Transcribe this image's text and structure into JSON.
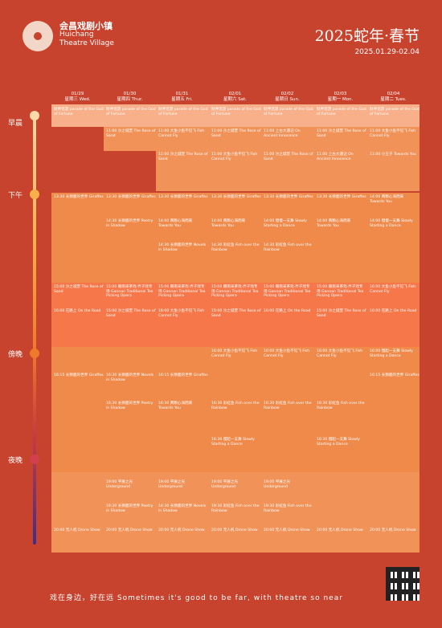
{
  "brand": {
    "cn": "会昌戏剧小镇",
    "en1": "Huichang",
    "en2": "Theatre Village"
  },
  "title": "2025蛇年·春节",
  "dates": "2025.01.29-02.04",
  "days": [
    {
      "date": "01/29",
      "label": "星期三 Wed."
    },
    {
      "date": "01/30",
      "label": "星期四 Thur."
    },
    {
      "date": "01/31",
      "label": "星期五 Fri."
    },
    {
      "date": "02/01",
      "label": "星期六 Sat."
    },
    {
      "date": "02/02",
      "label": "星期日 Sun."
    },
    {
      "date": "02/03",
      "label": "星期一 Mon."
    },
    {
      "date": "02/04",
      "label": "星期二 Tues."
    }
  ],
  "periods": [
    "早晨",
    "下午",
    "傍晚",
    "夜晚"
  ],
  "events": {
    "e1": "财神巡游 parade of the God of Fortune",
    "e2": "11:00 沙之城堡 The Rose of Sand",
    "e3": "11:00 大鱼小鱼不见飞 Fish Cannot Fly",
    "e4": "11:00 上古大遇记 On Ancient Innocence",
    "e5": "11:00 小王子 Towards You",
    "e6": "13:30 长颈鹿的世界 Giraffes",
    "e7": "14:30 长颈鹿的世界 Poetry in Shadow",
    "e8": "14:30 长颈鹿的世界 Novels in Shadow",
    "e9": "14:00 两颗心海而来 Towards You",
    "e10": "14:00 慢慢一支舞 Slowly Starting a Dance",
    "e11": "14:30 彩虹鱼 Fish over the Rainbow",
    "e12": "15:00 赣南采茶戏·弄子戏专场 Gannan Traditional Tea Picking Opera",
    "e13": "15:00 沙之城堡 The Rose of Sand",
    "e14": "16:00 在路上 On the Road",
    "e15": "16:00 大鱼小鱼不见飞 Fish Cannot Fly",
    "e16": "16:00 慢起一支舞 Slowly Starting a Dance",
    "e17": "16:15 长颈鹿的世界 Giraffes",
    "e18": "16:30 长颈鹿的世界 Novels in Shadow",
    "e19": "16:30 长颈鹿的世界 Poetry in Shadow",
    "e20": "16:30 两颗心海而来 Towards You",
    "e21": "16:30 彩虹鱼 Fish over the Rainbow",
    "e22": "16:30 慢起一支舞 Slowly Starting a Dance",
    "e23": "19:00 平展之光 Underground",
    "e24": "19:30 长颈鹿的世界 Poetry in Shadow",
    "e25": "19:30 彩虹鱼 Fish over the Rainbow",
    "e26": "20:00 无人机 Drone Show"
  },
  "slogan": "戏在身边，好在远 Sometimes it's good to be far, with theatre so near"
}
